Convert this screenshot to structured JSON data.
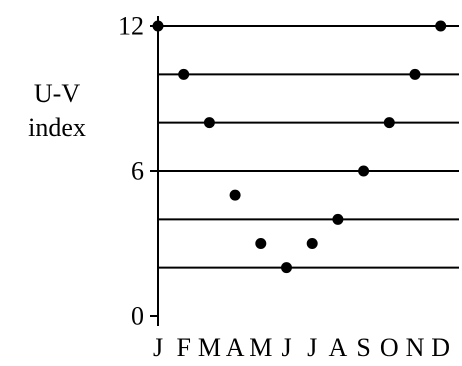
{
  "chart_data": {
    "type": "scatter",
    "title": "",
    "xlabel": "",
    "ylabel": [
      "U-V",
      "index"
    ],
    "categories": [
      "J",
      "F",
      "M",
      "A",
      "M",
      "J",
      "J",
      "A",
      "S",
      "O",
      "N",
      "D"
    ],
    "series": [
      {
        "values": [
          12,
          10,
          8,
          5,
          3,
          2,
          3,
          4,
          6,
          8,
          10,
          12
        ]
      }
    ],
    "ylim": [
      0,
      12
    ],
    "yticks": [
      0,
      6,
      12
    ],
    "gridlines_y": [
      2,
      4,
      6,
      8,
      10,
      12
    ],
    "grid": true,
    "colors": {
      "marker": "#000000",
      "line": "#000000"
    }
  }
}
